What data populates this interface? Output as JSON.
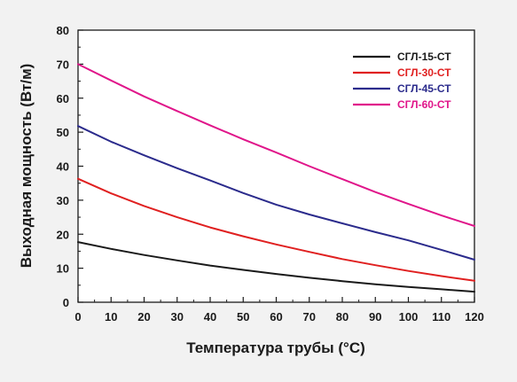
{
  "chart_data": {
    "type": "line",
    "xlabel": "Температура трубы (°С)",
    "ylabel": "Выходная мощность (Вт/м)",
    "xlim": [
      0,
      120
    ],
    "ylim": [
      0,
      80
    ],
    "xticks": [
      0,
      10,
      20,
      30,
      40,
      50,
      60,
      70,
      80,
      90,
      100,
      110,
      120
    ],
    "yticks": [
      0,
      10,
      20,
      30,
      40,
      50,
      60,
      70,
      80
    ],
    "grid": false,
    "legend_position": "top-right",
    "x": [
      0,
      10,
      20,
      30,
      40,
      50,
      60,
      70,
      80,
      90,
      100,
      110,
      120
    ],
    "series": [
      {
        "name": "СГЛ-15-СТ",
        "color": "#1a1a1a",
        "values": [
          17.7,
          15.7,
          13.9,
          12.3,
          10.8,
          9.5,
          8.3,
          7.2,
          6.2,
          5.3,
          4.5,
          3.8,
          3.1
        ]
      },
      {
        "name": "СГЛ-30-СТ",
        "color": "#e02020",
        "values": [
          36.3,
          32.0,
          28.3,
          25.0,
          22.0,
          19.4,
          17.0,
          14.8,
          12.7,
          10.9,
          9.2,
          7.7,
          6.3
        ]
      },
      {
        "name": "СГЛ-45-СТ",
        "color": "#2b2b8c",
        "values": [
          51.8,
          47.2,
          43.2,
          39.4,
          35.8,
          32.1,
          28.7,
          25.8,
          23.2,
          20.6,
          18.2,
          15.4,
          12.5
        ]
      },
      {
        "name": "СГЛ-60-СТ",
        "color": "#e0158a",
        "values": [
          70.0,
          65.2,
          60.5,
          56.2,
          52.0,
          47.9,
          44.0,
          40.0,
          36.2,
          32.4,
          28.9,
          25.5,
          22.4
        ]
      }
    ]
  }
}
